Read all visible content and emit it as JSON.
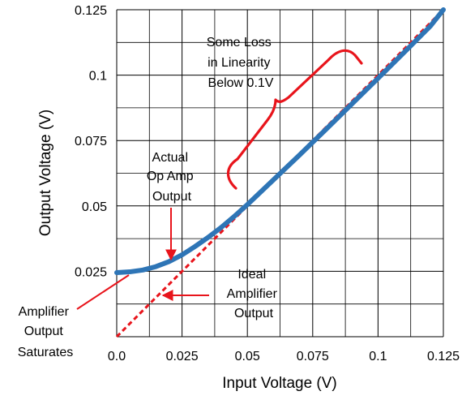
{
  "chart_data": {
    "type": "line",
    "xlabel": "Input Voltage (V)",
    "ylabel": "Output Voltage (V)",
    "xlim": [
      0,
      0.125
    ],
    "ylim": [
      0,
      0.125
    ],
    "x_ticks": [
      "0.0",
      "0.025",
      "0.05",
      "0.075",
      "0.1",
      "0.125"
    ],
    "y_ticks": [
      "0.025",
      "0.05",
      "0.075",
      "0.1",
      "0.125"
    ],
    "grid": true,
    "series": [
      {
        "label": "Actual Op Amp Output",
        "style": "solid",
        "color": "#2e75b6",
        "x": [
          0,
          0.005,
          0.01,
          0.015,
          0.02,
          0.025,
          0.03,
          0.035,
          0.04,
          0.045,
          0.05,
          0.06,
          0.07,
          0.08,
          0.09,
          0.1,
          0.11,
          0.12,
          0.125
        ],
        "y": [
          0.0245,
          0.0248,
          0.0255,
          0.0268,
          0.0287,
          0.0313,
          0.0345,
          0.038,
          0.0418,
          0.046,
          0.0505,
          0.06,
          0.0695,
          0.0792,
          0.089,
          0.0988,
          0.1087,
          0.1187,
          0.125
        ]
      },
      {
        "label": "Ideal Amplifier Output",
        "style": "dashed",
        "color": "#e8141b",
        "x": [
          0,
          0.125
        ],
        "y": [
          0,
          0.125
        ]
      }
    ],
    "annotations": [
      {
        "lines": [
          "Some Loss",
          "in Linearity",
          "Below 0.1V"
        ]
      },
      {
        "lines": [
          "Actual",
          "Op Amp",
          "Output"
        ]
      },
      {
        "lines": [
          "Ideal",
          "Amplifier",
          "Output"
        ]
      },
      {
        "lines": [
          "Amplifier",
          "Output",
          "Saturates"
        ]
      }
    ]
  }
}
